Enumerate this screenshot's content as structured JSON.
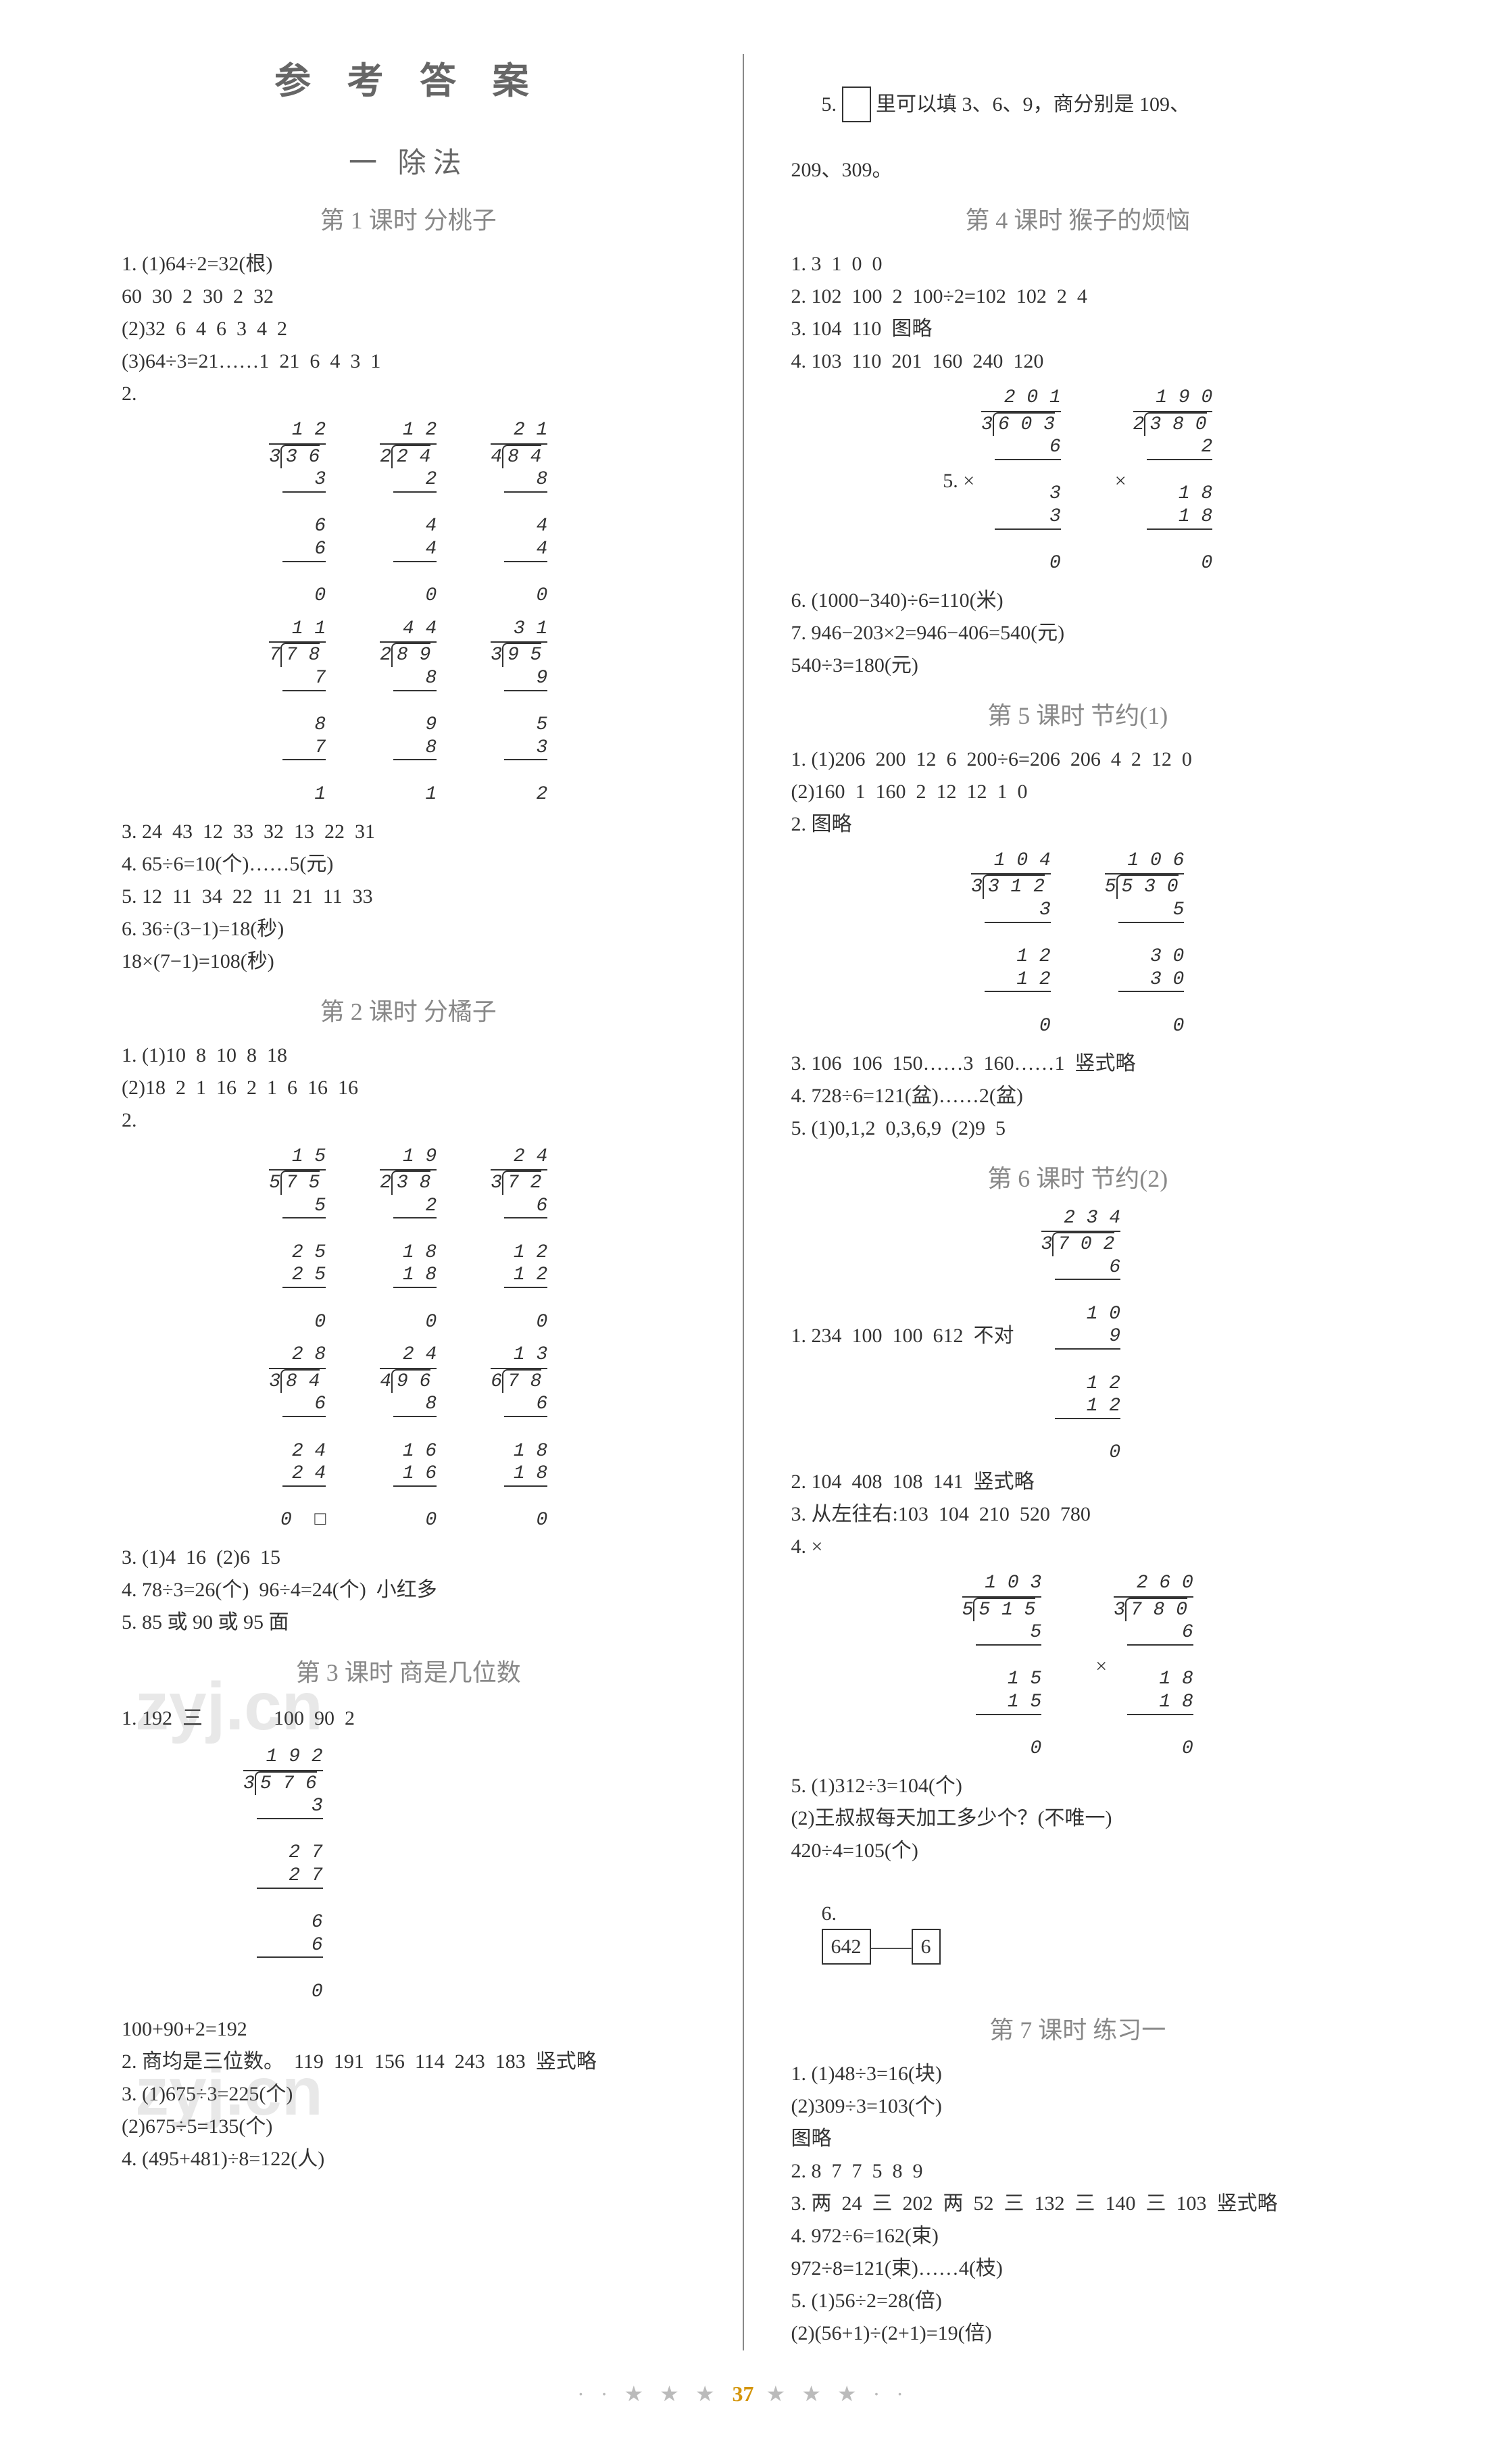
{
  "main_title": "参 考 答 案",
  "chapter": "一  除法",
  "page_number": "37",
  "watermark": "zyj.cn",
  "lessons": {
    "l1": {
      "title": "第 1 课时  分桃子",
      "lines": [
        "1. (1)64÷2=32(根)",
        "60  30  2  30  2  32",
        "(2)32  6  4  6  3  4  2",
        "(3)64÷3=21……1  21  6  4  3  1",
        "2."
      ],
      "lines2": [
        "3. 24  43  12  33  32  13  22  31",
        "4. 65÷6=10(个)……5(元)",
        "5. 12  11  34  22  11  21  11  33",
        "6. 36÷(3−1)=18(秒)",
        "18×(7−1)=108(秒)"
      ]
    },
    "l2": {
      "title": "第 2 课时  分橘子",
      "lines": [
        "1. (1)10  8  10  8  18",
        "(2)18  2  1  16  2  1  6  16  16",
        "2."
      ],
      "lines2": [
        "3. (1)4  16  (2)6  15",
        "4. 78÷3=26(个)  96÷4=24(个)  小红多",
        "5. 85 或 90 或 95 面"
      ]
    },
    "l3": {
      "title": "第 3 课时  商是几位数",
      "lines": [
        "1. 192  三              100  90  2"
      ],
      "lines2": [
        "100+90+2=192",
        "2. 商均是三位数。  119  191  156  114  243  183  竖式略",
        "3. (1)675÷3=225(个)",
        "(2)675÷5=135(个)",
        "4. (495+481)÷8=122(人)"
      ]
    },
    "l3b": {
      "lines": [
        "5. ",
        " 里可以填 3、6、9，商分别是 109、",
        "209、309。"
      ]
    },
    "l4": {
      "title": "第 4 课时  猴子的烦恼",
      "lines": [
        "1. 3  1  0  0",
        "2. 102  100  2  100÷2=102  102  2  4",
        "3. 104  110  图略",
        "4. 103  110  201  160  240  120"
      ],
      "lines2": [
        "6. (1000−340)÷6=110(米)",
        "7. 946−203×2=946−406=540(元)",
        "540÷3=180(元)"
      ]
    },
    "l5": {
      "title": "第 5 课时  节约(1)",
      "lines": [
        "1. (1)206  200  12  6  200÷6=206  206  4  2  12  0",
        "(2)160  1  160  2  12  12  1  0",
        "2. 图略"
      ],
      "lines2": [
        "3. 106  106  150……3  160……1  竖式略",
        "4. 728÷6=121(盆)……2(盆)",
        "5. (1)0,1,2  0,3,6,9  (2)9  5"
      ]
    },
    "l6": {
      "title": "第 6 课时  节约(2)",
      "lines": [
        "1. 234  100  100  612  不对"
      ],
      "lines2": [
        "2. 104  408  108  141  竖式略",
        "3. 从左往右:103  104  210  520  780",
        "4. ×"
      ],
      "lines3": [
        "5. (1)312÷3=104(个)",
        "(2)王叔叔每天加工多少个？(不唯一)",
        "420÷4=105(个)",
        "6. "
      ],
      "box1": "642",
      "box2": "6"
    },
    "l7": {
      "title": "第 7 课时  练习一",
      "lines": [
        "1. (1)48÷3=16(块)",
        "(2)309÷3=103(个)",
        "图略",
        "2. 8  7  7  5  8  9",
        "3. 两  24  三  202  两  52  三  132  三  140  三  103  竖式略",
        "4. 972÷6=162(束)",
        "972÷8=121(束)……4(枝)",
        "5. (1)56÷2=28(倍)",
        "(2)(56+1)÷(2+1)=19(倍)"
      ]
    }
  },
  "divisions": {
    "d1": [
      {
        "divisor": "3",
        "dividend": "3 6",
        "quotient": "1 2",
        "steps": [
          "3",
          "",
          "6",
          "6",
          "",
          "0"
        ]
      },
      {
        "divisor": "2",
        "dividend": "2 4",
        "quotient": "1 2",
        "steps": [
          "2",
          "",
          "4",
          "4",
          "",
          "0"
        ]
      },
      {
        "divisor": "4",
        "dividend": "8 4",
        "quotient": "2 1",
        "steps": [
          "8",
          "",
          "4",
          "4",
          "",
          "0"
        ]
      }
    ],
    "d2": [
      {
        "divisor": "7",
        "dividend": "7 8",
        "quotient": "1 1",
        "steps": [
          "7",
          "",
          "8",
          "7",
          "",
          "1"
        ]
      },
      {
        "divisor": "2",
        "dividend": "8 9",
        "quotient": "4 4",
        "steps": [
          "8",
          "",
          "9",
          "8",
          "",
          "1"
        ]
      },
      {
        "divisor": "3",
        "dividend": "9 5",
        "quotient": "3 1",
        "steps": [
          "9",
          "",
          "5",
          "3",
          "",
          "2"
        ]
      }
    ],
    "d3": [
      {
        "divisor": "5",
        "dividend": "7 5",
        "quotient": "1 5",
        "steps": [
          "5",
          "",
          "2 5",
          "2 5",
          "",
          "0"
        ]
      },
      {
        "divisor": "2",
        "dividend": "3 8",
        "quotient": "1 9",
        "steps": [
          "2",
          "",
          "1 8",
          "1 8",
          "",
          "0"
        ]
      },
      {
        "divisor": "3",
        "dividend": "7 2",
        "quotient": "2 4",
        "steps": [
          "6",
          "",
          "1 2",
          "1 2",
          "",
          "0"
        ]
      }
    ],
    "d4": [
      {
        "divisor": "3",
        "dividend": "8 4",
        "quotient": "2 8",
        "steps": [
          "6",
          "",
          "2 4",
          "2 4",
          "",
          "0  □"
        ]
      },
      {
        "divisor": "4",
        "dividend": "9 6",
        "quotient": "2 4",
        "steps": [
          "8",
          "",
          "1 6",
          "1 6",
          "",
          "0"
        ]
      },
      {
        "divisor": "6",
        "dividend": "7 8",
        "quotient": "1 3",
        "steps": [
          "6",
          "",
          "1 8",
          "1 8",
          "",
          "0"
        ]
      }
    ],
    "d5": {
      "divisor": "3",
      "dividend": "5 7 6",
      "quotient": "1 9 2",
      "steps": [
        "3",
        "",
        "2 7",
        "2 7",
        "",
        "6",
        "6",
        "",
        "0"
      ]
    },
    "d6": [
      {
        "prefix": "5. ×",
        "divisor": "3",
        "dividend": "6 0 3",
        "quotient": "2 0 1",
        "steps": [
          "6",
          "",
          "3",
          "3",
          "",
          "0"
        ]
      },
      {
        "prefix": "×",
        "divisor": "2",
        "dividend": "3 8 0",
        "quotient": "1 9 0",
        "steps": [
          "2",
          "",
          "1 8",
          "1 8",
          "",
          "0"
        ]
      }
    ],
    "d7": [
      {
        "divisor": "3",
        "dividend": "3 1 2",
        "quotient": "1 0 4",
        "steps": [
          "3",
          "",
          "1 2",
          "1 2",
          "",
          "0"
        ]
      },
      {
        "divisor": "5",
        "dividend": "5 3 0",
        "quotient": "1 0 6",
        "steps": [
          "5",
          "",
          "3 0",
          "3 0",
          "",
          "0"
        ]
      }
    ],
    "d8": {
      "divisor": "3",
      "dividend": "7 0 2",
      "quotient": "2 3 4",
      "steps": [
        "6",
        "",
        "1 0",
        "9",
        "",
        "1 2",
        "1 2",
        "",
        "0"
      ]
    },
    "d9": [
      {
        "divisor": "5",
        "dividend": "5 1 5",
        "quotient": "1 0 3",
        "steps": [
          "5",
          "",
          "1 5",
          "1 5",
          "",
          "0"
        ]
      },
      {
        "prefix": "×",
        "divisor": "3",
        "dividend": "7 8 0",
        "quotient": "2 6 0",
        "steps": [
          "6",
          "",
          "1 8",
          "1 8",
          "",
          "0"
        ]
      }
    ]
  }
}
